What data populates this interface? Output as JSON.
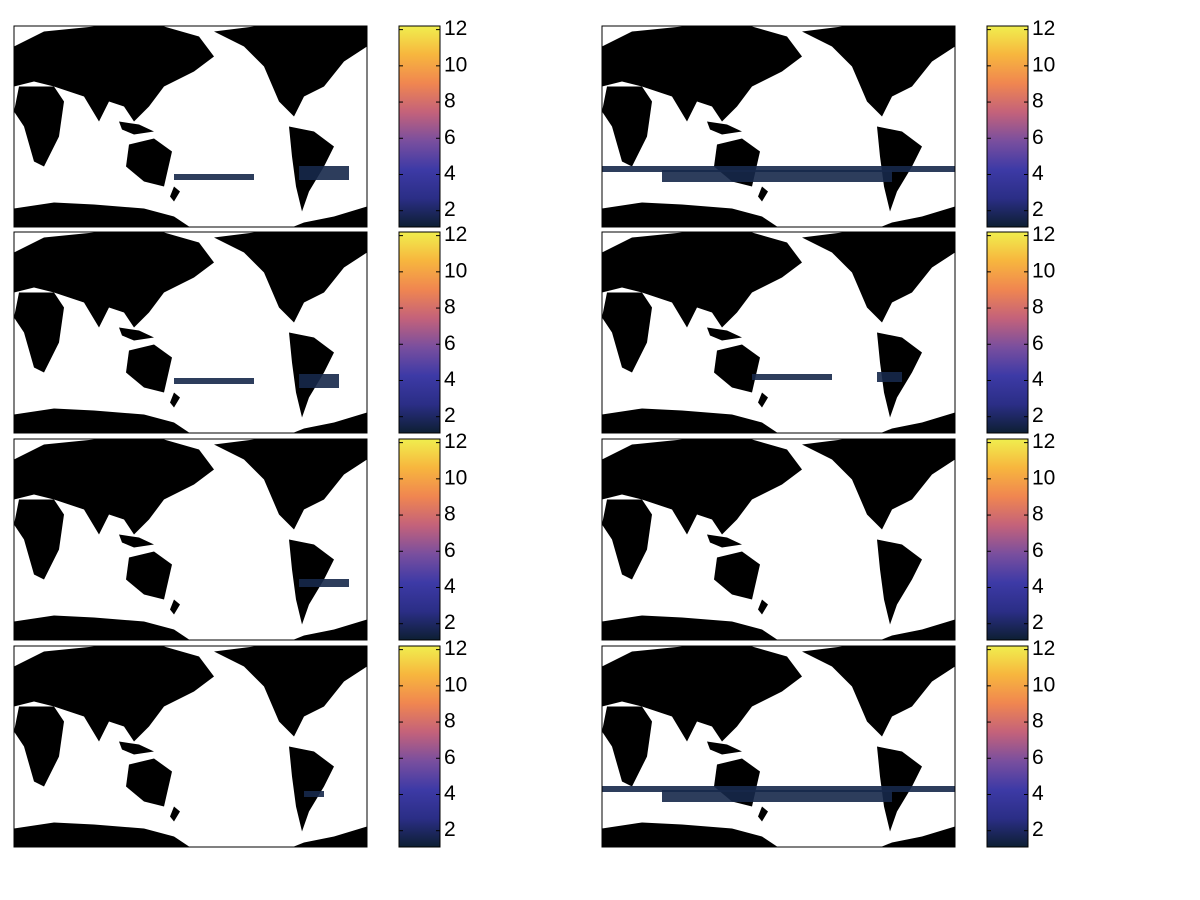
{
  "chart_data": [
    {
      "type": "map",
      "colorbar": {
        "lim": [
          1.1,
          12.2
        ],
        "ticks": [
          2,
          4,
          6,
          8,
          10,
          12
        ],
        "colormap": [
          "#0d1f33",
          "#2b2e86",
          "#3d3aa6",
          "#7a4f9e",
          "#c4627a",
          "#f08650",
          "#f7b63e",
          "#f0ee4e"
        ]
      }
    },
    {
      "type": "map",
      "colorbar": {
        "lim": [
          1.1,
          12.2
        ],
        "ticks": [
          2,
          4,
          6,
          8,
          10,
          12
        ],
        "colormap": [
          "#0d1f33",
          "#2b2e86",
          "#3d3aa6",
          "#7a4f9e",
          "#c4627a",
          "#f08650",
          "#f7b63e",
          "#f0ee4e"
        ]
      }
    },
    {
      "type": "map",
      "colorbar": {
        "lim": [
          1.1,
          12.2
        ],
        "ticks": [
          2,
          4,
          6,
          8,
          10,
          12
        ],
        "colormap": [
          "#0d1f33",
          "#2b2e86",
          "#3d3aa6",
          "#7a4f9e",
          "#c4627a",
          "#f08650",
          "#f7b63e",
          "#f0ee4e"
        ]
      }
    },
    {
      "type": "map",
      "colorbar": {
        "lim": [
          1.1,
          12.2
        ],
        "ticks": [
          2,
          4,
          6,
          8,
          10,
          12
        ],
        "colormap": [
          "#0d1f33",
          "#2b2e86",
          "#3d3aa6",
          "#7a4f9e",
          "#c4627a",
          "#f08650",
          "#f7b63e",
          "#f0ee4e"
        ]
      }
    },
    {
      "type": "map",
      "colorbar": {
        "lim": [
          1.1,
          12.2
        ],
        "ticks": [
          2,
          4,
          6,
          8,
          10,
          12
        ],
        "colormap": [
          "#0d1f33",
          "#2b2e86",
          "#3d3aa6",
          "#7a4f9e",
          "#c4627a",
          "#f08650",
          "#f7b63e",
          "#f0ee4e"
        ]
      }
    },
    {
      "type": "map",
      "colorbar": {
        "lim": [
          1.1,
          12.2
        ],
        "ticks": [
          2,
          4,
          6,
          8,
          10,
          12
        ],
        "colormap": [
          "#0d1f33",
          "#2b2e86",
          "#3d3aa6",
          "#7a4f9e",
          "#c4627a",
          "#f08650",
          "#f7b63e",
          "#f0ee4e"
        ]
      }
    },
    {
      "type": "map",
      "colorbar": {
        "lim": [
          1.1,
          12.2
        ],
        "ticks": [
          2,
          4,
          6,
          8,
          10,
          12
        ],
        "colormap": [
          "#0d1f33",
          "#2b2e86",
          "#3d3aa6",
          "#7a4f9e",
          "#c4627a",
          "#f08650",
          "#f7b63e",
          "#f0ee4e"
        ]
      }
    },
    {
      "type": "map",
      "colorbar": {
        "lim": [
          1.1,
          12.2
        ],
        "ticks": [
          2,
          4,
          6,
          8,
          10,
          12
        ],
        "colormap": [
          "#0d1f33",
          "#2b2e86",
          "#3d3aa6",
          "#7a4f9e",
          "#c4627a",
          "#f08650",
          "#f7b63e",
          "#f0ee4e"
        ]
      }
    }
  ]
}
